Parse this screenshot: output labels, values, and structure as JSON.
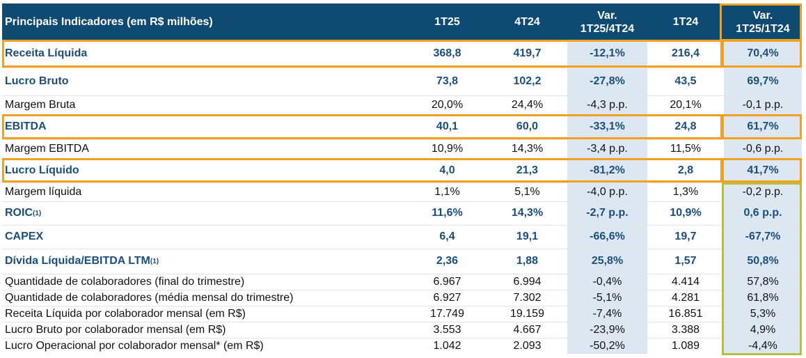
{
  "table": {
    "header": [
      [
        "Principais Indicadores (em R$ milhões)"
      ],
      [
        "1T25"
      ],
      [
        "4T24"
      ],
      [
        "Var.",
        "1T25/4T24"
      ],
      [
        "1T24"
      ],
      [
        "Var.",
        "1T25/1T24"
      ]
    ],
    "rows": [
      {
        "label": "Receita Líquida",
        "cells": [
          "368,8",
          "419,7",
          "-12,1%",
          "216,4",
          "70,4%"
        ]
      },
      {
        "label": "Lucro Bruto",
        "cells": [
          "73,8",
          "102,2",
          "-27,8%",
          "43,5",
          "69,7%"
        ]
      },
      {
        "label": "Margem Bruta",
        "cells": [
          "20,0%",
          "24,4%",
          "-4,3 p.p.",
          "20,1%",
          "-0,1 p.p."
        ]
      },
      {
        "label": "EBITDA",
        "cells": [
          "40,1",
          "60,0",
          "-33,1%",
          "24,8",
          "61,7%"
        ]
      },
      {
        "label": "Margem EBITDA",
        "cells": [
          "10,9%",
          "14,3%",
          "-3,4 p.p.",
          "11,5%",
          "-0,6 p.p."
        ]
      },
      {
        "label": "Lucro Líquido",
        "cells": [
          "4,0",
          "21,3",
          "-81,2%",
          "2,8",
          "41,7%"
        ]
      },
      {
        "label": "Margem líquida",
        "cells": [
          "1,1%",
          "5,1%",
          "-4,0 p.p.",
          "1,3%",
          "-0,2 p.p."
        ]
      },
      {
        "label": "ROIC",
        "sup": "(1)",
        "cells": [
          "11,6%",
          "14,3%",
          "-2,7 p.p.",
          "10,9%",
          "0,6 p.p."
        ]
      },
      {
        "label": "CAPEX",
        "cells": [
          "6,4",
          "19,1",
          "-66,6%",
          "19,7",
          "-67,7%"
        ]
      },
      {
        "label": "Dívida Líquida/EBITDA LTM",
        "sup": "(1)",
        "cells": [
          "2,36",
          "1,88",
          "25,8%",
          "1,57",
          "50,8%"
        ]
      },
      {
        "label": "Quantidade de colaboradores (final do trimestre)",
        "cells": [
          "6.967",
          "6.994",
          "-0,4%",
          "4.414",
          "57,8%"
        ]
      },
      {
        "label": "Quantidade de colaboradores (média mensal do trimestre)",
        "cells": [
          "6.927",
          "7.302",
          "-5,1%",
          "4.281",
          "61,8%"
        ]
      },
      {
        "label": "Receita Líquida por colaborador mensal (em R$)",
        "cells": [
          "17.749",
          "19.159",
          "-7,4%",
          "16.851",
          "5,3%"
        ]
      },
      {
        "label": "Lucro Bruto por colaborador mensal (em R$)",
        "cells": [
          "3.553",
          "4.667",
          "-23,9%",
          "3.388",
          "4,9%"
        ]
      },
      {
        "label": "Lucro Operacional por colaborador mensal* (em R$)",
        "cells": [
          "1.042",
          "2.093",
          "-50,2%",
          "1.089",
          "-4,4%"
        ]
      }
    ]
  }
}
